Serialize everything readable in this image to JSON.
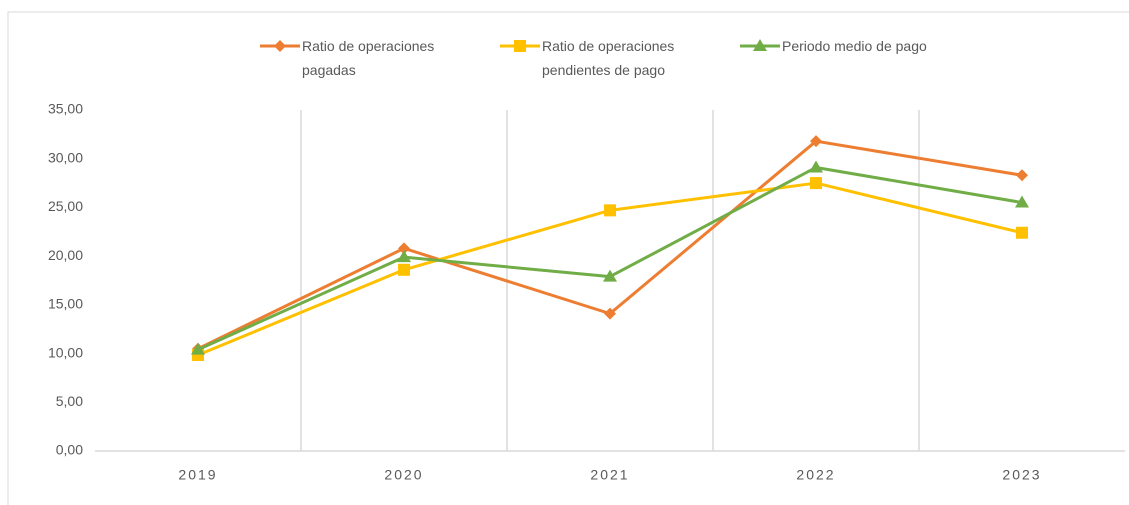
{
  "chart_data": {
    "type": "line",
    "categories": [
      "2019",
      "2020",
      "2021",
      "2022",
      "2023"
    ],
    "series": [
      {
        "name": "Ratio de operaciones pagadas",
        "color": "#ED7D31",
        "marker": "diamond",
        "values": [
          10.5,
          20.8,
          14.1,
          31.8,
          28.3
        ]
      },
      {
        "name": "Ratio de operaciones pendientes de pago",
        "color": "#FFC000",
        "marker": "square",
        "values": [
          9.85,
          18.6,
          24.7,
          27.5,
          22.4
        ]
      },
      {
        "name": "Periodo medio de pago",
        "color": "#70AD47",
        "marker": "triangle",
        "values": [
          10.4,
          19.9,
          17.9,
          29.1,
          25.5
        ]
      }
    ],
    "ylim": [
      0,
      35
    ],
    "yticks": [
      {
        "value": 0,
        "label": "0,00"
      },
      {
        "value": 5,
        "label": "5,00"
      },
      {
        "value": 10,
        "label": "10,00"
      },
      {
        "value": 15,
        "label": "15,00"
      },
      {
        "value": 20,
        "label": "20,00"
      },
      {
        "value": 25,
        "label": "25,00"
      },
      {
        "value": 30,
        "label": "30,00"
      },
      {
        "value": 35,
        "label": "35,00"
      }
    ],
    "legend": "top"
  }
}
